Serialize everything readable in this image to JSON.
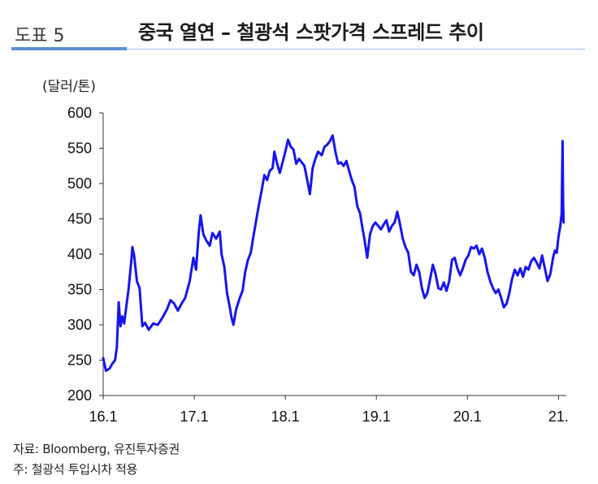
{
  "header": {
    "figure_number": "도표 5",
    "title": "중국 열연 – 철광석 스팟가격 스프레드 추이"
  },
  "unit_label": "(달러/톤)",
  "footer": {
    "source": "자료: Bloomberg, 유진투자증권",
    "note": "주: 철광석 투입시차 적용"
  },
  "colors": {
    "line": "#1515f0",
    "accent": "#5b8fd9"
  },
  "chart_data": {
    "type": "line",
    "title": "중국 열연 – 철광석 스팟가격 스프레드 추이",
    "ylabel": "(달러/톤)",
    "xlabel": "",
    "ylim": [
      200,
      600
    ],
    "yticks": [
      200,
      250,
      300,
      350,
      400,
      450,
      500,
      550,
      600
    ],
    "xlim": [
      2016.0,
      2021.05
    ],
    "xticks": [
      2016.0,
      2017.0,
      2018.0,
      2019.0,
      2020.0,
      2021.0
    ],
    "xtick_labels": [
      "16.1",
      "17.1",
      "18.1",
      "19.1",
      "20.1",
      "21."
    ],
    "grid": false,
    "series": [
      {
        "values": [
          [
            2016.0,
            253
          ],
          [
            2016.03,
            235
          ],
          [
            2016.07,
            238
          ],
          [
            2016.1,
            245
          ],
          [
            2016.13,
            250
          ],
          [
            2016.15,
            268
          ],
          [
            2016.17,
            332
          ],
          [
            2016.19,
            298
          ],
          [
            2016.21,
            312
          ],
          [
            2016.23,
            302
          ],
          [
            2016.25,
            322
          ],
          [
            2016.28,
            352
          ],
          [
            2016.31,
            392
          ],
          [
            2016.32,
            410
          ],
          [
            2016.34,
            398
          ],
          [
            2016.37,
            362
          ],
          [
            2016.4,
            352
          ],
          [
            2016.43,
            298
          ],
          [
            2016.46,
            303
          ],
          [
            2016.5,
            293
          ],
          [
            2016.55,
            302
          ],
          [
            2016.6,
            300
          ],
          [
            2016.65,
            310
          ],
          [
            2016.7,
            322
          ],
          [
            2016.74,
            335
          ],
          [
            2016.78,
            330
          ],
          [
            2016.82,
            320
          ],
          [
            2016.86,
            330
          ],
          [
            2016.9,
            338
          ],
          [
            2016.95,
            362
          ],
          [
            2016.99,
            395
          ],
          [
            2017.02,
            378
          ],
          [
            2017.05,
            432
          ],
          [
            2017.07,
            455
          ],
          [
            2017.1,
            428
          ],
          [
            2017.13,
            420
          ],
          [
            2017.17,
            412
          ],
          [
            2017.2,
            430
          ],
          [
            2017.24,
            422
          ],
          [
            2017.28,
            432
          ],
          [
            2017.3,
            400
          ],
          [
            2017.33,
            382
          ],
          [
            2017.36,
            345
          ],
          [
            2017.39,
            325
          ],
          [
            2017.41,
            310
          ],
          [
            2017.43,
            300
          ],
          [
            2017.46,
            322
          ],
          [
            2017.5,
            338
          ],
          [
            2017.53,
            348
          ],
          [
            2017.56,
            375
          ],
          [
            2017.59,
            392
          ],
          [
            2017.62,
            402
          ],
          [
            2017.65,
            425
          ],
          [
            2017.68,
            448
          ],
          [
            2017.71,
            470
          ],
          [
            2017.74,
            490
          ],
          [
            2017.77,
            512
          ],
          [
            2017.8,
            505
          ],
          [
            2017.83,
            518
          ],
          [
            2017.86,
            522
          ],
          [
            2017.88,
            545
          ],
          [
            2017.91,
            528
          ],
          [
            2017.94,
            515
          ],
          [
            2017.97,
            530
          ],
          [
            2018.0,
            545
          ],
          [
            2018.03,
            562
          ],
          [
            2018.06,
            552
          ],
          [
            2018.09,
            548
          ],
          [
            2018.12,
            528
          ],
          [
            2018.15,
            535
          ],
          [
            2018.18,
            530
          ],
          [
            2018.21,
            525
          ],
          [
            2018.24,
            505
          ],
          [
            2018.27,
            485
          ],
          [
            2018.3,
            522
          ],
          [
            2018.33,
            535
          ],
          [
            2018.36,
            545
          ],
          [
            2018.4,
            540
          ],
          [
            2018.43,
            552
          ],
          [
            2018.46,
            555
          ],
          [
            2018.49,
            560
          ],
          [
            2018.52,
            568
          ],
          [
            2018.55,
            545
          ],
          [
            2018.58,
            528
          ],
          [
            2018.61,
            530
          ],
          [
            2018.64,
            525
          ],
          [
            2018.67,
            532
          ],
          [
            2018.7,
            518
          ],
          [
            2018.73,
            505
          ],
          [
            2018.76,
            495
          ],
          [
            2018.79,
            468
          ],
          [
            2018.82,
            458
          ],
          [
            2018.85,
            435
          ],
          [
            2018.87,
            420
          ],
          [
            2018.9,
            395
          ],
          [
            2018.93,
            428
          ],
          [
            2018.96,
            440
          ],
          [
            2018.99,
            445
          ],
          [
            2019.02,
            440
          ],
          [
            2019.05,
            435
          ],
          [
            2019.08,
            442
          ],
          [
            2019.11,
            448
          ],
          [
            2019.14,
            432
          ],
          [
            2019.17,
            440
          ],
          [
            2019.2,
            445
          ],
          [
            2019.23,
            460
          ],
          [
            2019.26,
            442
          ],
          [
            2019.29,
            422
          ],
          [
            2019.32,
            410
          ],
          [
            2019.35,
            402
          ],
          [
            2019.38,
            375
          ],
          [
            2019.41,
            370
          ],
          [
            2019.44,
            385
          ],
          [
            2019.47,
            375
          ],
          [
            2019.5,
            352
          ],
          [
            2019.53,
            338
          ],
          [
            2019.56,
            345
          ],
          [
            2019.59,
            365
          ],
          [
            2019.62,
            385
          ],
          [
            2019.65,
            372
          ],
          [
            2019.68,
            352
          ],
          [
            2019.71,
            350
          ],
          [
            2019.74,
            360
          ],
          [
            2019.77,
            348
          ],
          [
            2019.8,
            362
          ],
          [
            2019.83,
            392
          ],
          [
            2019.86,
            395
          ],
          [
            2019.89,
            380
          ],
          [
            2019.92,
            370
          ],
          [
            2019.95,
            380
          ],
          [
            2019.98,
            392
          ],
          [
            2020.01,
            398
          ],
          [
            2020.04,
            410
          ],
          [
            2020.07,
            408
          ],
          [
            2020.1,
            412
          ],
          [
            2020.13,
            400
          ],
          [
            2020.16,
            408
          ],
          [
            2020.19,
            395
          ],
          [
            2020.22,
            375
          ],
          [
            2020.25,
            362
          ],
          [
            2020.28,
            352
          ],
          [
            2020.31,
            345
          ],
          [
            2020.34,
            350
          ],
          [
            2020.37,
            338
          ],
          [
            2020.4,
            325
          ],
          [
            2020.43,
            330
          ],
          [
            2020.46,
            345
          ],
          [
            2020.49,
            365
          ],
          [
            2020.52,
            378
          ],
          [
            2020.55,
            370
          ],
          [
            2020.58,
            380
          ],
          [
            2020.61,
            368
          ],
          [
            2020.64,
            382
          ],
          [
            2020.67,
            378
          ],
          [
            2020.7,
            390
          ],
          [
            2020.73,
            395
          ],
          [
            2020.76,
            388
          ],
          [
            2020.79,
            380
          ],
          [
            2020.82,
            398
          ],
          [
            2020.85,
            380
          ],
          [
            2020.88,
            362
          ],
          [
            2020.91,
            372
          ],
          [
            2020.94,
            395
          ],
          [
            2020.96,
            405
          ],
          [
            2020.98,
            402
          ],
          [
            2021.0,
            425
          ],
          [
            2021.02,
            440
          ],
          [
            2021.035,
            458
          ],
          [
            2021.045,
            560
          ],
          [
            2021.05,
            480
          ],
          [
            2021.055,
            445
          ]
        ]
      }
    ]
  }
}
